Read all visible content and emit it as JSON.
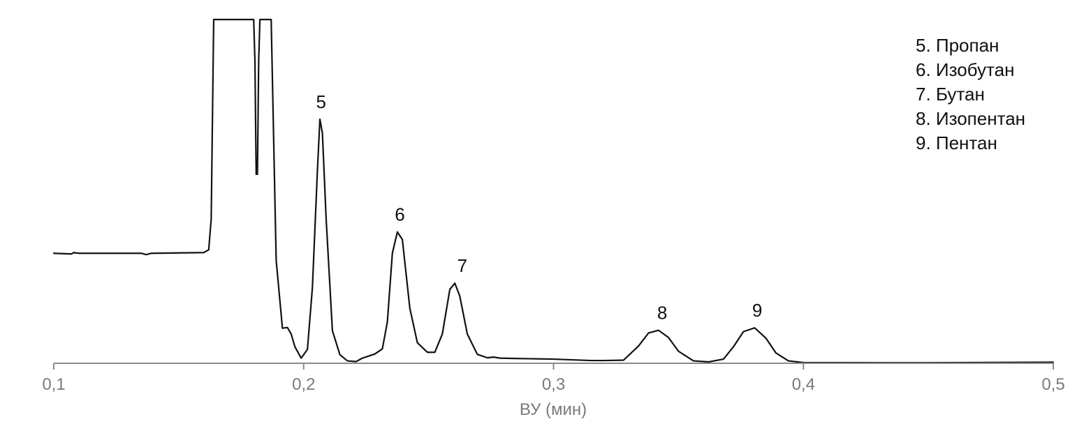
{
  "chart_data": {
    "type": "line",
    "title": "",
    "xlabel": "ВУ (мин)",
    "ylabel": "",
    "xlim": [
      0.1,
      0.5
    ],
    "ylim": [
      0,
      100
    ],
    "grid": false,
    "legend_position": "top-right",
    "x_ticks": [
      0.1,
      0.2,
      0.3,
      0.4,
      0.5
    ],
    "x_tick_labels": [
      "0,1",
      "0,2",
      "0,3",
      "0,4",
      "0,5"
    ],
    "series": [
      {
        "x": [
          0.1,
          0.107,
          0.108,
          0.11,
          0.135,
          0.137,
          0.139,
          0.16,
          0.162,
          0.163,
          0.164,
          0.18,
          0.1805,
          0.181,
          0.1815,
          0.182,
          0.1825,
          0.183,
          0.187,
          0.189,
          0.1915,
          0.1935,
          0.195,
          0.1965,
          0.199,
          0.2015,
          0.2035,
          0.2055,
          0.2065,
          0.2075,
          0.209,
          0.2115,
          0.2145,
          0.2175,
          0.221,
          0.2235,
          0.226,
          0.2285,
          0.2315,
          0.2335,
          0.2355,
          0.2375,
          0.2395,
          0.2425,
          0.2455,
          0.2495,
          0.2525,
          0.2555,
          0.2585,
          0.2605,
          0.2625,
          0.2655,
          0.2695,
          0.2735,
          0.276,
          0.2785,
          0.285,
          0.3,
          0.315,
          0.32,
          0.328,
          0.334,
          0.338,
          0.342,
          0.346,
          0.35,
          0.356,
          0.362,
          0.368,
          0.372,
          0.376,
          0.3805,
          0.385,
          0.389,
          0.394,
          0.4,
          0.45,
          0.5
        ],
        "y": [
          32,
          31.8,
          32.2,
          32,
          32,
          31.6,
          32,
          32.2,
          33,
          42,
          100,
          100,
          88,
          55,
          55,
          88,
          100,
          100,
          100,
          30,
          10.2,
          10.4,
          8.5,
          4.8,
          1.5,
          4,
          22,
          56,
          71,
          67,
          42,
          9.5,
          2.5,
          0.7,
          0.5,
          1.5,
          2.1,
          2.7,
          4.2,
          12,
          32,
          38.2,
          36,
          16,
          6,
          3.2,
          3.2,
          8.5,
          21.5,
          23.3,
          19.5,
          8.5,
          2.6,
          1.6,
          1.8,
          1.5,
          1.4,
          1.2,
          0.8,
          0.8,
          0.9,
          5,
          8.8,
          9.6,
          7.5,
          3.5,
          0.7,
          0.4,
          1.2,
          4.8,
          9.2,
          10.3,
          7.3,
          3,
          0.7,
          0.2,
          0.15,
          0.3
        ]
      }
    ],
    "annotations": [
      {
        "text": "5",
        "x": 0.207,
        "y": 71
      },
      {
        "text": "6",
        "x": 0.2385,
        "y": 38.2
      },
      {
        "text": "7",
        "x": 0.2635,
        "y": 23.3
      },
      {
        "text": "8",
        "x": 0.3435,
        "y": 9.6
      },
      {
        "text": "9",
        "x": 0.3815,
        "y": 10.3
      }
    ],
    "legend": [
      "5. Пропан",
      "6. Изобутан",
      "7. Бутан",
      "8. Изопентан",
      "9. Пентан"
    ]
  }
}
